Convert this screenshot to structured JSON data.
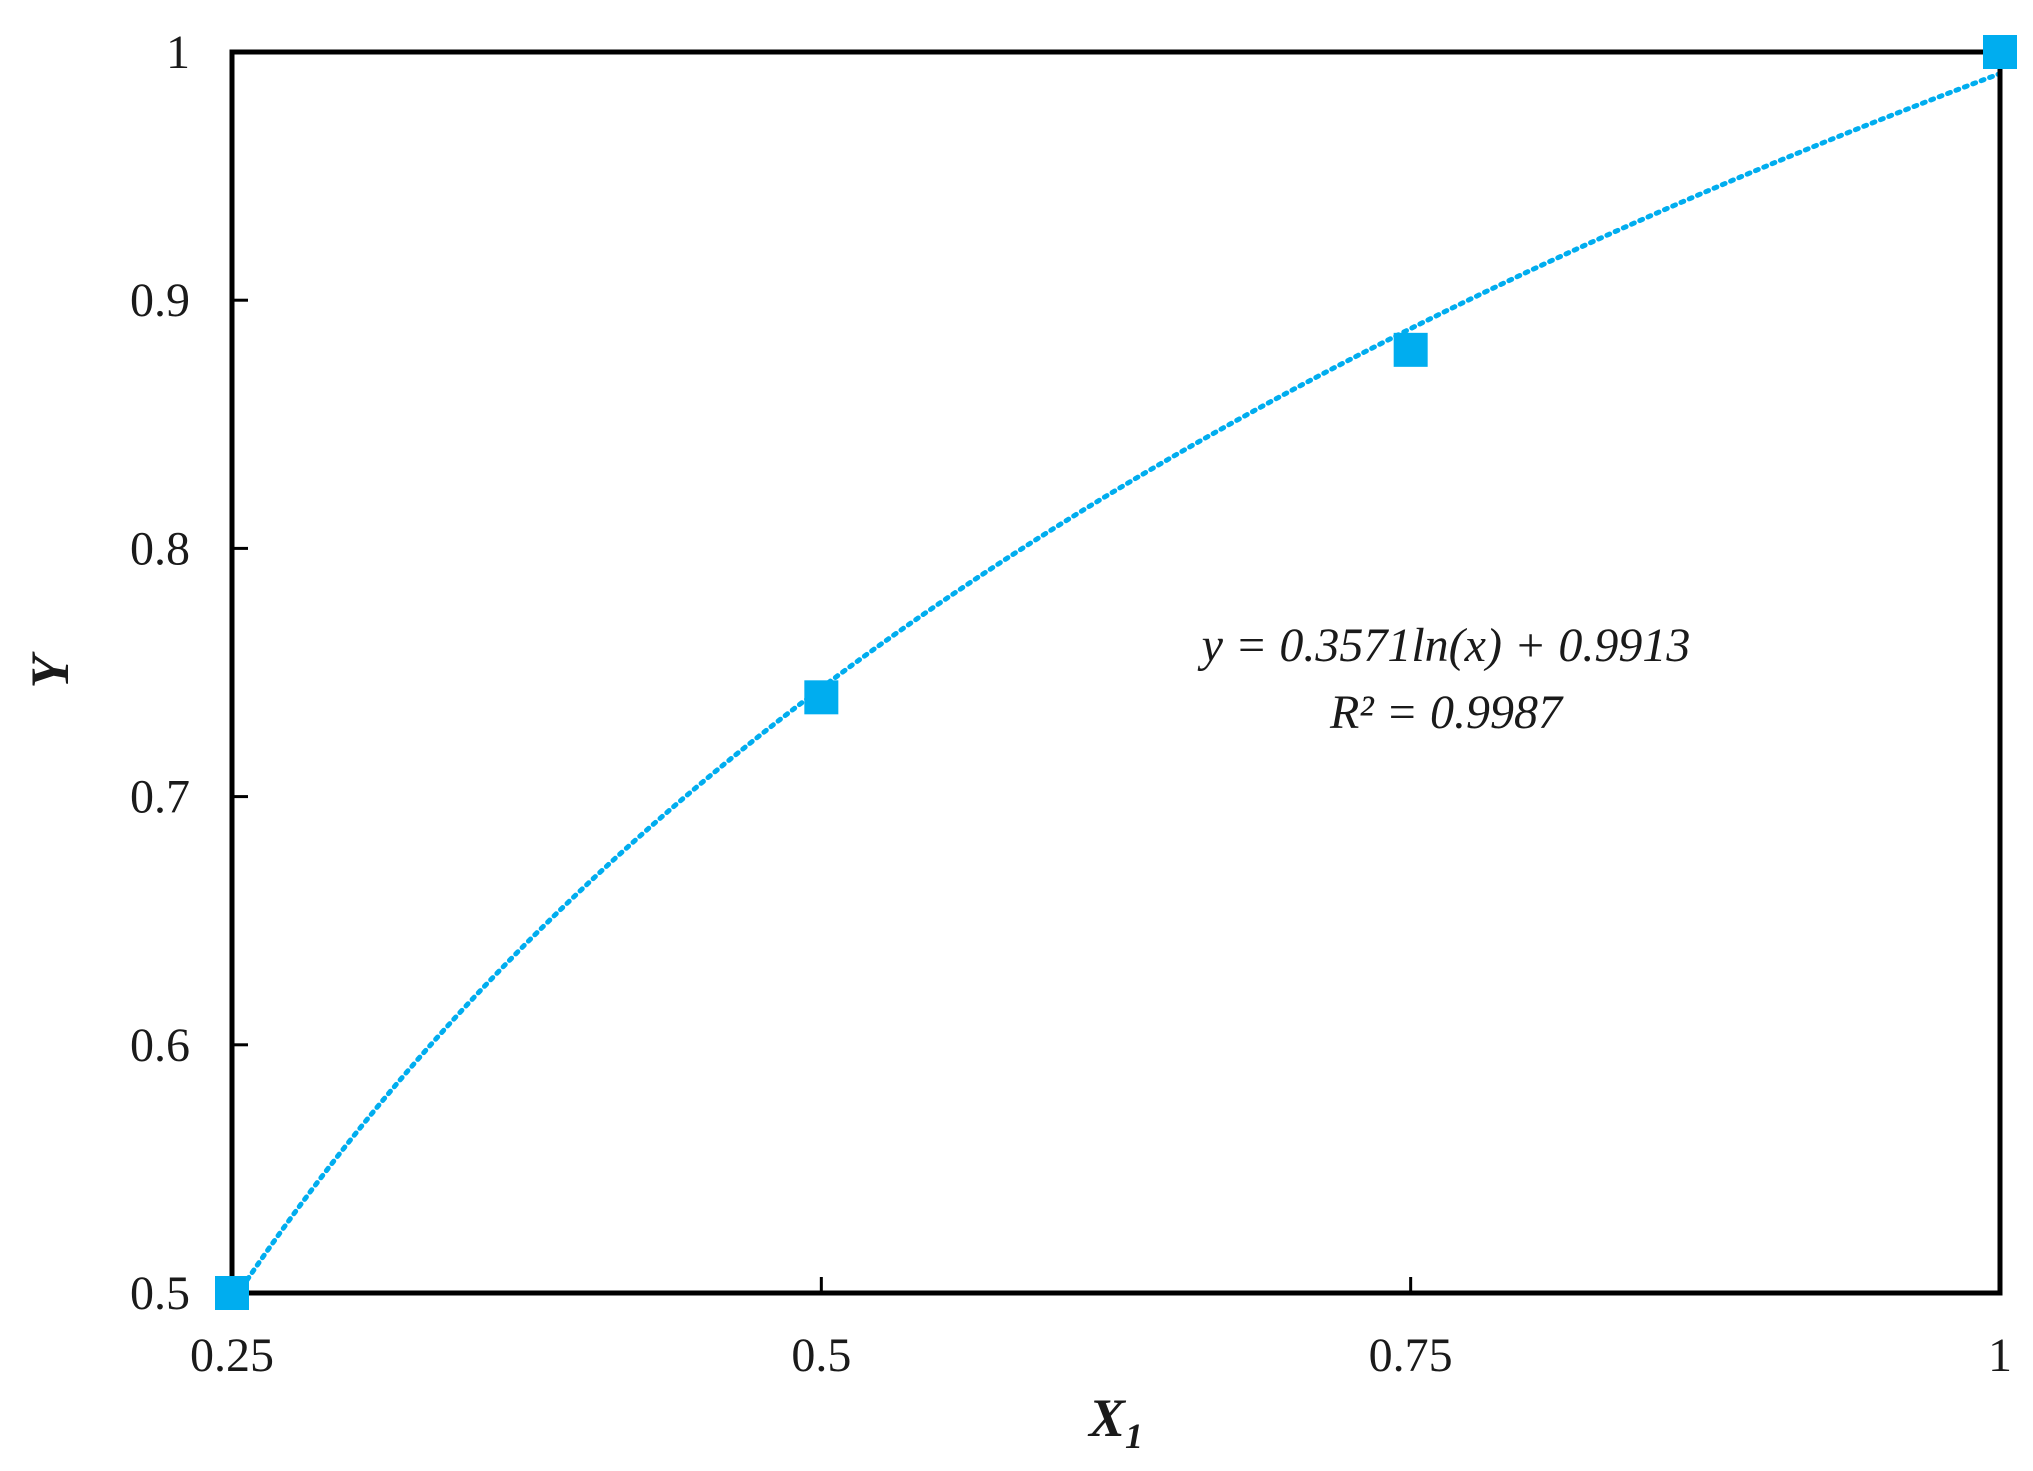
{
  "chart_data": {
    "type": "scatter",
    "title": "",
    "xlabel": "X",
    "xlabel_subscript": "1",
    "ylabel": "Y",
    "xlim": [
      0.25,
      1
    ],
    "ylim": [
      0.5,
      1
    ],
    "x_ticks": [
      0.25,
      0.5,
      0.75,
      1
    ],
    "x_tick_labels": [
      "0.25",
      "0.5",
      "0.75",
      "1"
    ],
    "y_ticks": [
      0.5,
      0.6,
      0.7,
      0.8,
      0.9,
      1
    ],
    "y_tick_labels": [
      "0.5",
      "0.6",
      "0.7",
      "0.8",
      "0.9",
      "1"
    ],
    "grid": false,
    "series": [
      {
        "x": [
          0.25,
          0.5,
          0.75,
          1
        ],
        "y": [
          0.5,
          0.74,
          0.88,
          1.0
        ],
        "marker": "square",
        "color": "#00adef"
      }
    ],
    "trendline": {
      "type": "logarithmic",
      "a": 0.3571,
      "b": 0.9913,
      "style": "dotted",
      "color": "#00adef"
    },
    "annotations": {
      "equation": "y = 0.3571ln(x) + 0.9913",
      "r2_label": "R² = 0.9987"
    }
  }
}
